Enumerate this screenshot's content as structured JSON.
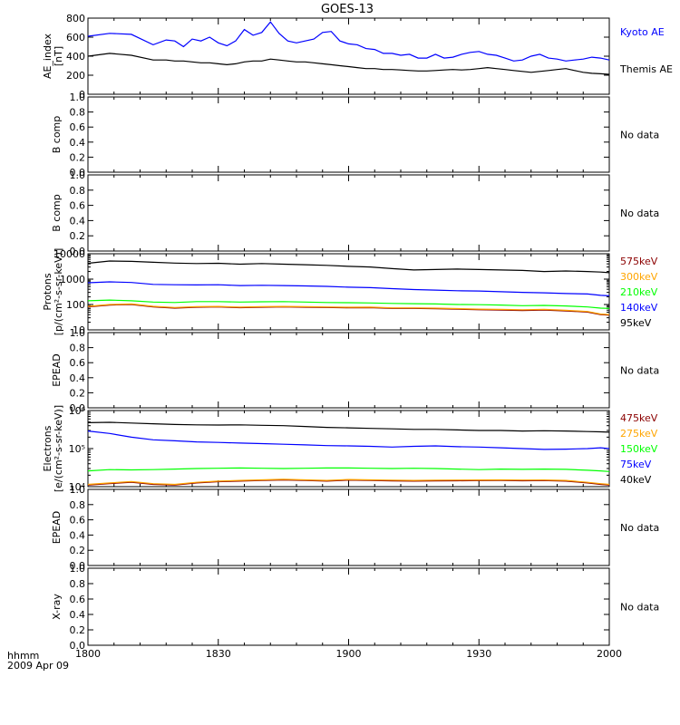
{
  "chart_data": {
    "title": "GOES-13",
    "type": "line",
    "x_ticks": [
      "1800",
      "1830",
      "1900",
      "1930",
      "2000"
    ],
    "x_label_line1": "hhmm",
    "x_label_line2": "2009 Apr 09",
    "panels": [
      {
        "ylabel": [
          "AE_index",
          "[nT]"
        ],
        "scale": "linear",
        "ylim": [
          0,
          800
        ],
        "ticks": [
          "0",
          "200",
          "400",
          "600",
          "800"
        ],
        "series": [
          {
            "name": "Kyoto AE",
            "color": "#0000ff",
            "x": [
              0,
              5,
              10,
              15,
              18,
              20,
              22,
              24,
              26,
              28,
              30,
              32,
              34,
              36,
              38,
              40,
              42,
              44,
              46,
              48,
              50,
              52,
              54,
              56,
              58,
              60,
              62,
              64,
              66,
              68,
              70,
              72,
              74,
              76,
              78,
              80,
              82,
              84,
              86,
              88,
              90,
              92,
              94,
              96,
              98,
              100,
              102,
              104,
              106,
              108,
              110,
              112,
              114,
              116,
              118,
              120
            ],
            "y": [
              610,
              640,
              630,
              520,
              570,
              560,
              500,
              580,
              560,
              600,
              540,
              510,
              560,
              680,
              620,
              650,
              760,
              640,
              560,
              540,
              560,
              580,
              650,
              660,
              560,
              530,
              520,
              480,
              470,
              430,
              430,
              410,
              420,
              380,
              380,
              420,
              380,
              390,
              420,
              440,
              450,
              420,
              410,
              380,
              350,
              360,
              400,
              420,
              380,
              370,
              350,
              360,
              370,
              390,
              380,
              360
            ]
          },
          {
            "name": "Themis AE",
            "color": "#000000",
            "x": [
              0,
              5,
              10,
              15,
              18,
              20,
              22,
              24,
              26,
              28,
              30,
              32,
              34,
              36,
              38,
              40,
              42,
              44,
              46,
              48,
              50,
              52,
              54,
              56,
              58,
              60,
              62,
              64,
              66,
              68,
              70,
              72,
              74,
              76,
              78,
              80,
              82,
              84,
              86,
              88,
              90,
              92,
              94,
              96,
              98,
              100,
              102,
              104,
              106,
              108,
              110,
              112,
              114,
              116,
              118,
              120
            ],
            "y": [
              400,
              430,
              410,
              360,
              360,
              350,
              350,
              340,
              330,
              330,
              320,
              310,
              320,
              340,
              350,
              350,
              370,
              360,
              350,
              340,
              340,
              330,
              320,
              310,
              300,
              290,
              280,
              270,
              270,
              260,
              260,
              255,
              250,
              245,
              245,
              250,
              255,
              260,
              255,
              260,
              270,
              280,
              270,
              260,
              250,
              240,
              230,
              240,
              250,
              260,
              270,
              250,
              230,
              220,
              215,
              210
            ]
          }
        ]
      },
      {
        "ylabel": [
          "B comp"
        ],
        "scale": "linear",
        "ylim": [
          0,
          1
        ],
        "ticks": [
          "0.0",
          "0.2",
          "0.4",
          "0.6",
          "0.8",
          "1.0"
        ],
        "nodata": "No data",
        "series": []
      },
      {
        "ylabel": [
          "B comp"
        ],
        "scale": "linear",
        "ylim": [
          0,
          1
        ],
        "ticks": [
          "0.0",
          "0.2",
          "0.4",
          "0.6",
          "0.8",
          "1.0"
        ],
        "nodata": "No data",
        "series": []
      },
      {
        "ylabel": [
          "Protons",
          "[p/(cm²-s-sr-keV)]"
        ],
        "scale": "log",
        "ylim": [
          10,
          10000
        ],
        "ticks": [
          "10",
          "100",
          "1000",
          "10000"
        ],
        "series": [
          {
            "name": "575keV",
            "color": "#8b0000",
            "x": [
              0,
              5,
              10,
              15,
              20,
              25,
              30,
              35,
              40,
              45,
              50,
              55,
              60,
              65,
              70,
              75,
              80,
              85,
              90,
              95,
              100,
              105,
              110,
              115,
              118,
              120
            ],
            "y": [
              80,
              95,
              100,
              80,
              72,
              78,
              80,
              75,
              78,
              80,
              78,
              76,
              74,
              75,
              70,
              70,
              68,
              65,
              62,
              60,
              58,
              60,
              56,
              50,
              40,
              38
            ]
          },
          {
            "name": "300keV",
            "color": "#ffa500",
            "x": [
              0,
              5,
              10,
              15,
              20,
              25,
              30,
              35,
              40,
              45,
              50,
              55,
              60,
              65,
              70,
              75,
              80,
              85,
              90,
              95,
              100,
              105,
              110,
              115,
              118,
              120
            ],
            "y": [
              85,
              100,
              105,
              85,
              76,
              82,
              84,
              79,
              82,
              84,
              82,
              80,
              78,
              79,
              74,
              74,
              72,
              69,
              66,
              64,
              62,
              64,
              59,
              53,
              42,
              40
            ]
          },
          {
            "name": "210keV",
            "color": "#00ff00",
            "x": [
              0,
              5,
              10,
              15,
              20,
              25,
              30,
              35,
              40,
              45,
              50,
              55,
              60,
              65,
              70,
              75,
              80,
              85,
              90,
              95,
              100,
              105,
              110,
              115,
              118,
              120
            ],
            "y": [
              140,
              150,
              140,
              125,
              120,
              130,
              130,
              125,
              128,
              130,
              125,
              120,
              118,
              115,
              110,
              108,
              105,
              100,
              98,
              95,
              90,
              92,
              88,
              80,
              72,
              70
            ]
          },
          {
            "name": "140keV",
            "color": "#0000ff",
            "x": [
              0,
              5,
              10,
              15,
              20,
              25,
              30,
              35,
              40,
              45,
              50,
              55,
              60,
              65,
              70,
              75,
              80,
              85,
              90,
              95,
              100,
              105,
              110,
              115,
              118,
              120
            ],
            "y": [
              720,
              780,
              740,
              620,
              600,
              590,
              600,
              560,
              570,
              560,
              540,
              520,
              480,
              460,
              420,
              390,
              370,
              350,
              340,
              320,
              300,
              290,
              270,
              260,
              230,
              220
            ]
          },
          {
            "name": "95keV",
            "color": "#000000",
            "x": [
              0,
              5,
              10,
              15,
              20,
              25,
              30,
              35,
              40,
              45,
              50,
              55,
              60,
              65,
              70,
              75,
              80,
              85,
              90,
              95,
              100,
              105,
              110,
              115,
              118,
              120
            ],
            "y": [
              4200,
              5200,
              5000,
              4600,
              4300,
              4100,
              4200,
              3900,
              4100,
              3900,
              3700,
              3500,
              3200,
              3000,
              2600,
              2300,
              2400,
              2500,
              2400,
              2300,
              2200,
              2000,
              2100,
              2000,
              1900,
              1800
            ]
          }
        ]
      },
      {
        "ylabel": [
          "EPEAD"
        ],
        "scale": "linear",
        "ylim": [
          0,
          1
        ],
        "ticks": [
          "0.0",
          "0.2",
          "0.4",
          "0.6",
          "0.8",
          "1.0"
        ],
        "nodata": "No data",
        "series": []
      },
      {
        "ylabel": [
          "Electrons",
          "[e/(cm²-s-sr-keV)]"
        ],
        "scale": "log",
        "ylim": [
          10000,
          1000000
        ],
        "ticks": [
          "10⁴",
          "10⁵",
          "10⁶"
        ],
        "series": [
          {
            "name": "475keV",
            "color": "#8b0000",
            "x": [
              0,
              5,
              10,
              15,
              20,
              25,
              30,
              35,
              40,
              45,
              50,
              55,
              60,
              65,
              70,
              75,
              80,
              85,
              90,
              95,
              100,
              105,
              110,
              115,
              118,
              120
            ],
            "y": [
              11000,
              12000,
              13000,
              11500,
              11000,
              12500,
              13500,
              14000,
              14500,
              15000,
              14500,
              14000,
              14800,
              14500,
              14200,
              14000,
              14200,
              14300,
              14400,
              14500,
              14300,
              14400,
              14000,
              12500,
              11500,
              11000
            ]
          },
          {
            "name": "275keV",
            "color": "#ffa500",
            "x": [
              0,
              5,
              10,
              15,
              20,
              25,
              30,
              35,
              40,
              45,
              50,
              55,
              60,
              65,
              70,
              75,
              80,
              85,
              90,
              95,
              100,
              105,
              110,
              115,
              118,
              120
            ],
            "y": [
              11500,
              12500,
              13600,
              12000,
              11500,
              13000,
              14000,
              14600,
              15100,
              15600,
              15100,
              14600,
              15400,
              15100,
              14800,
              14600,
              14800,
              14900,
              15000,
              15100,
              14900,
              15000,
              14600,
              13000,
              12000,
              11500
            ]
          },
          {
            "name": "150keV",
            "color": "#00ff00",
            "x": [
              0,
              5,
              10,
              15,
              20,
              25,
              30,
              35,
              40,
              45,
              50,
              55,
              60,
              65,
              70,
              75,
              80,
              85,
              90,
              95,
              100,
              105,
              110,
              115,
              118,
              120
            ],
            "y": [
              26000,
              28000,
              27500,
              28000,
              29000,
              30000,
              30500,
              31000,
              30500,
              30000,
              30500,
              31000,
              31000,
              30500,
              30000,
              30500,
              30000,
              29000,
              28000,
              29000,
              28500,
              29000,
              28500,
              27000,
              26000,
              25000
            ]
          },
          {
            "name": "75keV",
            "color": "#0000ff",
            "x": [
              0,
              5,
              10,
              15,
              20,
              25,
              30,
              35,
              40,
              45,
              50,
              55,
              60,
              65,
              70,
              75,
              80,
              85,
              90,
              95,
              100,
              105,
              110,
              115,
              118,
              120
            ],
            "y": [
              290000,
              250000,
              200000,
              170000,
              160000,
              150000,
              145000,
              140000,
              135000,
              130000,
              125000,
              120000,
              118000,
              115000,
              110000,
              115000,
              118000,
              112000,
              110000,
              105000,
              100000,
              95000,
              97000,
              100000,
              105000,
              100000
            ]
          },
          {
            "name": "40keV",
            "color": "#000000",
            "x": [
              0,
              5,
              10,
              15,
              20,
              25,
              30,
              35,
              40,
              45,
              50,
              55,
              60,
              65,
              70,
              75,
              80,
              85,
              90,
              95,
              100,
              105,
              110,
              115,
              118,
              120
            ],
            "y": [
              480000,
              490000,
              470000,
              450000,
              430000,
              420000,
              415000,
              420000,
              410000,
              400000,
              380000,
              360000,
              350000,
              340000,
              330000,
              320000,
              320000,
              310000,
              300000,
              300000,
              290000,
              295000,
              290000,
              280000,
              275000,
              270000
            ]
          }
        ]
      },
      {
        "ylabel": [
          "EPEAD"
        ],
        "scale": "linear",
        "ylim": [
          0,
          1
        ],
        "ticks": [
          "0.0",
          "0.2",
          "0.4",
          "0.6",
          "0.8",
          "1.0"
        ],
        "nodata": "No data",
        "series": []
      },
      {
        "ylabel": [
          "X-ray"
        ],
        "scale": "linear",
        "ylim": [
          0,
          1
        ],
        "ticks": [
          "0.0",
          "0.2",
          "0.4",
          "0.6",
          "0.8",
          "1.0"
        ],
        "nodata": "No data",
        "series": []
      }
    ]
  }
}
